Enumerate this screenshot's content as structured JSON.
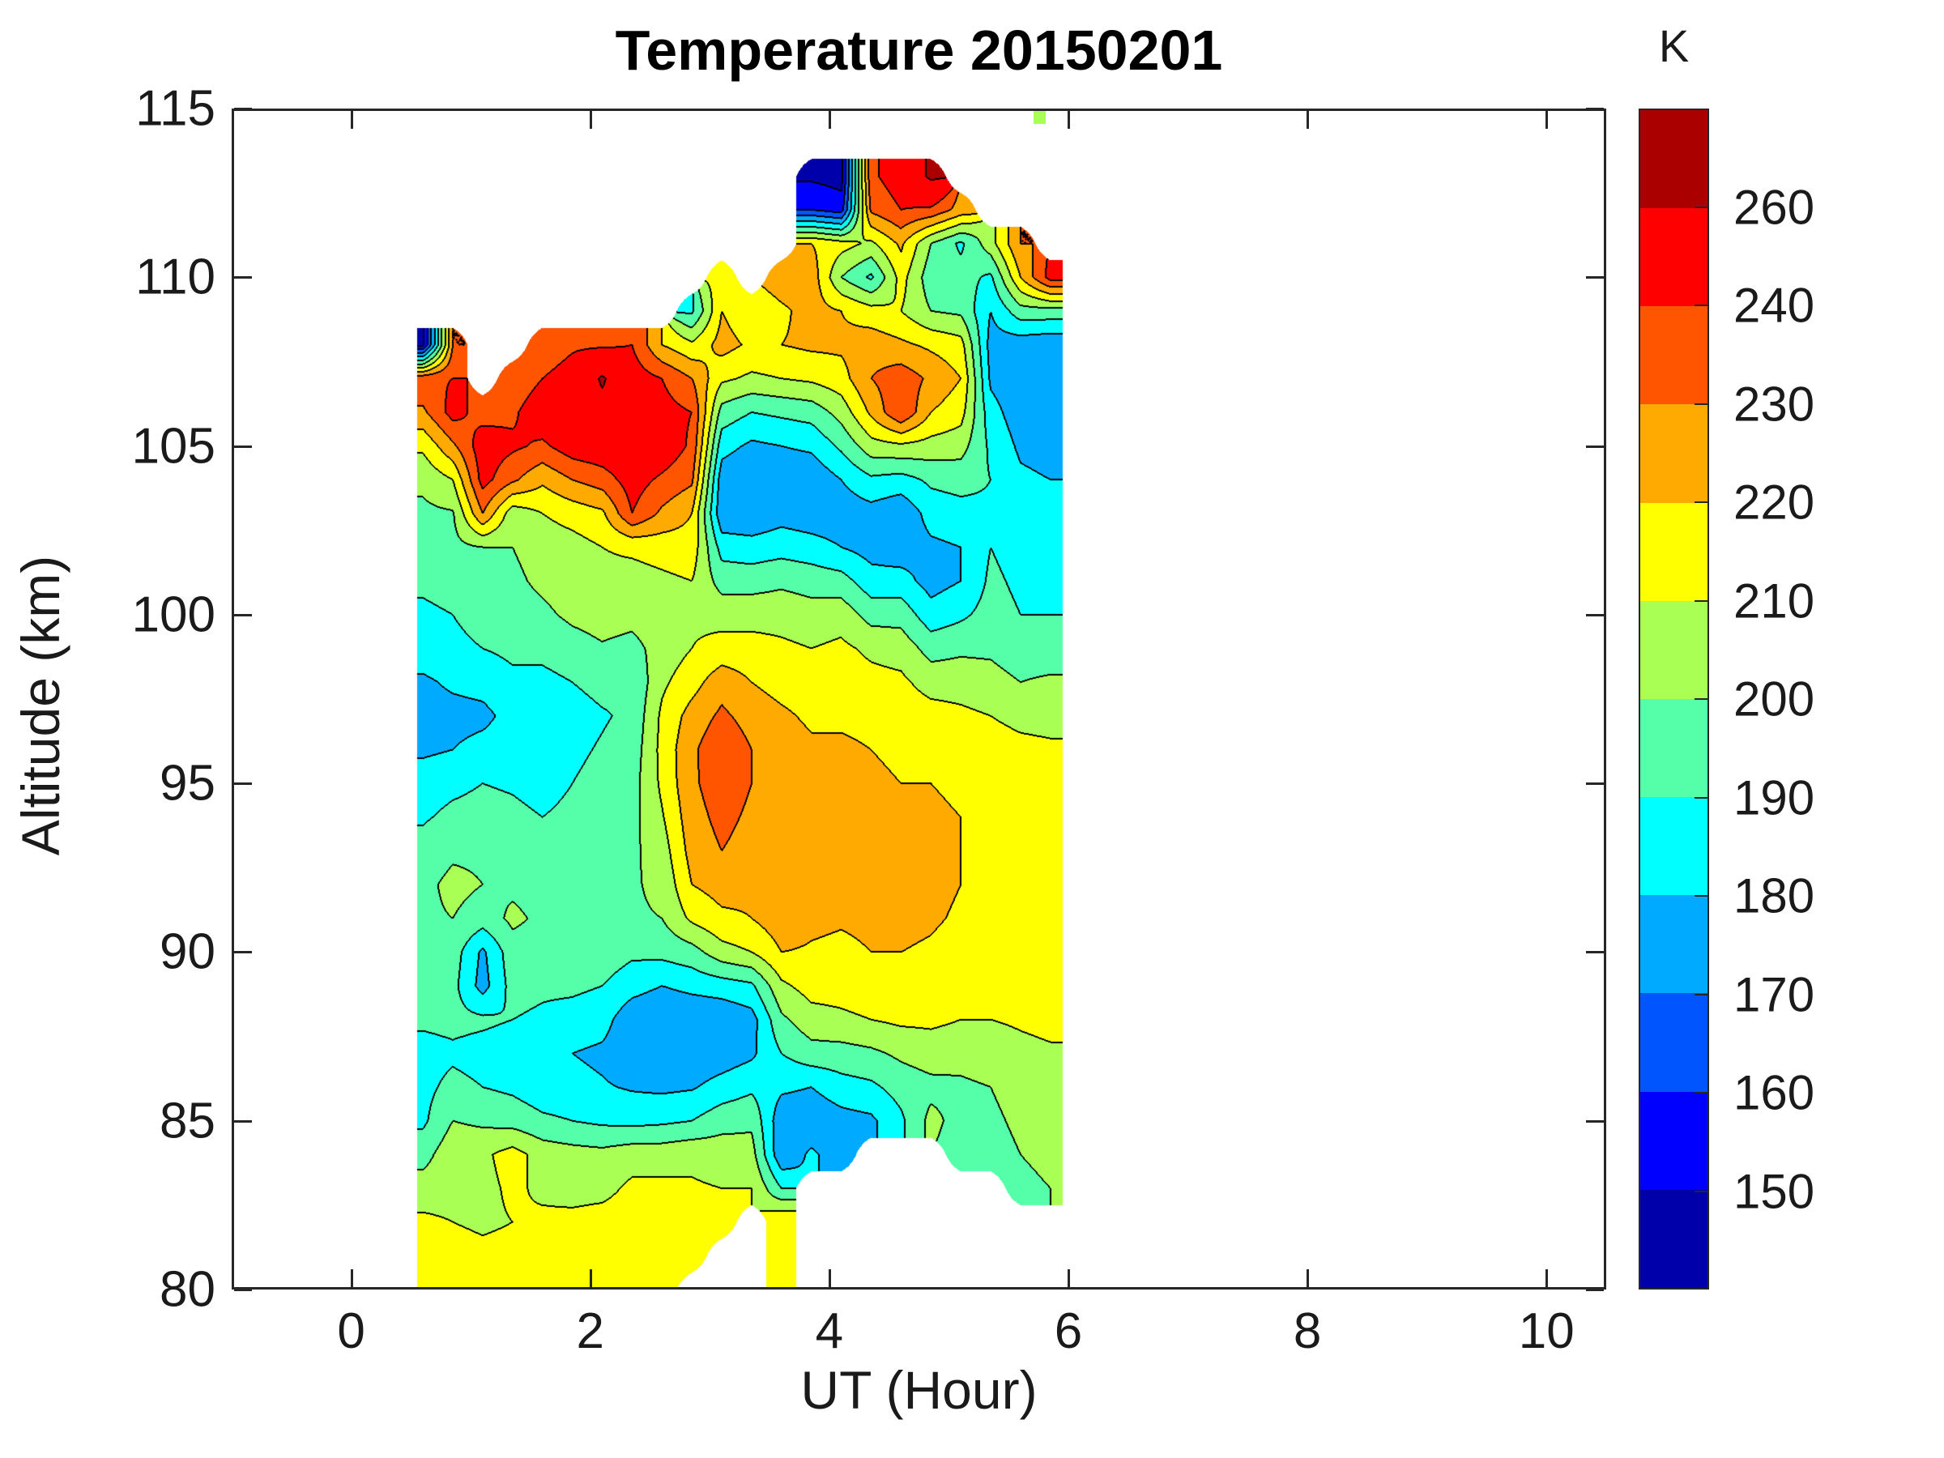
{
  "title": "Temperature 20150201",
  "axes": {
    "x": {
      "label": "UT (Hour)",
      "range": [
        -1,
        10.5
      ],
      "ticks": [
        0,
        2,
        4,
        6,
        8,
        10
      ]
    },
    "y": {
      "label": "Altitude (km)",
      "range": [
        80,
        115
      ],
      "ticks": [
        80,
        85,
        90,
        95,
        100,
        105,
        110,
        115
      ]
    }
  },
  "colorbar": {
    "title": "K",
    "tick_labels": [
      260,
      240,
      230,
      220,
      210,
      200,
      190,
      180,
      170,
      160,
      150
    ],
    "segment_colors_top_to_bottom": [
      "#AA0000",
      "#FF0000",
      "#FF5500",
      "#FFAA00",
      "#FFFF00",
      "#AAFF55",
      "#55FFAA",
      "#00FFFF",
      "#00AAFF",
      "#0055FF",
      "#0000FF",
      "#0000AA"
    ]
  },
  "style": {
    "background": "#FFFFFF",
    "axis_color": "#262626",
    "text_color": "#1a1a1a"
  },
  "chart_data": {
    "type": "filled_contour",
    "title": "Temperature 20150201",
    "xlabel": "UT (Hour)",
    "ylabel": "Altitude (km)",
    "zlabel": "Temperature (K)",
    "xlim": [
      -1,
      10.5
    ],
    "ylim": [
      80,
      115
    ],
    "levels": [
      150,
      160,
      170,
      180,
      190,
      200,
      210,
      220,
      230,
      240,
      260
    ],
    "band_colors": [
      "#0000AA",
      "#0000FF",
      "#0055FF",
      "#00AAFF",
      "#00FFFF",
      "#55FFAA",
      "#AAFF55",
      "#FFFF00",
      "#FFAA00",
      "#FF5500",
      "#FF0000",
      "#AA0000"
    ],
    "no_data_color": "#FFFFFF",
    "contour_line_color": "#000000",
    "grid_x_ut": [
      0.6,
      0.85,
      1.1,
      1.35,
      1.6,
      1.85,
      2.1,
      2.35,
      2.6,
      2.85,
      3.1,
      3.35,
      3.6,
      3.85,
      4.1,
      4.35,
      4.6,
      4.85,
      5.1,
      5.35,
      5.6,
      5.85
    ],
    "grid_y_alt_km": [
      80,
      81,
      82,
      83,
      84,
      85,
      86,
      87,
      88,
      89,
      90,
      91,
      92,
      93,
      94,
      95,
      96,
      97,
      98,
      99,
      100,
      101,
      102,
      103,
      104,
      105,
      106,
      107,
      108,
      109,
      110,
      111,
      112,
      113,
      114
    ],
    "values_by_altitude_row": [
      [
        215,
        215,
        215,
        216,
        216,
        217,
        218,
        218,
        218,
        null,
        null,
        null,
        216,
        null,
        null,
        null,
        null,
        null,
        null,
        null,
        null,
        null
      ],
      [
        215,
        215,
        213,
        214,
        215,
        216,
        216,
        217,
        217,
        217,
        null,
        null,
        218,
        null,
        null,
        null,
        null,
        null,
        null,
        null,
        null,
        null
      ],
      [
        212,
        210,
        208,
        210,
        212,
        213,
        214,
        215,
        216,
        215,
        215,
        null,
        220,
        null,
        null,
        null,
        null,
        null,
        null,
        null,
        null,
        null
      ],
      [
        205,
        206,
        207,
        212,
        208,
        206,
        207,
        212,
        212,
        211,
        210,
        210,
        190,
        null,
        null,
        null,
        null,
        null,
        null,
        null,
        198,
        200
      ],
      [
        196,
        207,
        208,
        214,
        206,
        204,
        203,
        206,
        206,
        208,
        206,
        204,
        172,
        182,
        174,
        null,
        null,
        null,
        194,
        196,
        200,
        202
      ],
      [
        188,
        200,
        198,
        196,
        192,
        190,
        188,
        187,
        188,
        190,
        196,
        198,
        173,
        172,
        176,
        178,
        188,
        203,
        196,
        198,
        202,
        203
      ],
      [
        187,
        193,
        190,
        188,
        184,
        183,
        181,
        179,
        178,
        179,
        184,
        188,
        182,
        180,
        186,
        188,
        194,
        197,
        198,
        200,
        204,
        205
      ],
      [
        186,
        188,
        186,
        184,
        182,
        180,
        178,
        173,
        171,
        172,
        174,
        178,
        190,
        196,
        196,
        198,
        202,
        205,
        204,
        206,
        208,
        209
      ],
      [
        192,
        193,
        192,
        190,
        188,
        186,
        184,
        173,
        170,
        171,
        172,
        176,
        198,
        206,
        208,
        210,
        212,
        212,
        210,
        210,
        211,
        212
      ],
      [
        196,
        193,
        176,
        194,
        192,
        192,
        190,
        184,
        180,
        183,
        185,
        188,
        208,
        214,
        214,
        216,
        217,
        216,
        214,
        213,
        214,
        214
      ],
      [
        198,
        195,
        178,
        196,
        196,
        197,
        196,
        192,
        193,
        196,
        206,
        210,
        220,
        219,
        218,
        220,
        220,
        219,
        217,
        216,
        216,
        216
      ],
      [
        198,
        200,
        195,
        202,
        198,
        199,
        200,
        199,
        200,
        212,
        218,
        220,
        226,
        222,
        221,
        222,
        222,
        221,
        219,
        218,
        218,
        218
      ],
      [
        197,
        203,
        200,
        198,
        196,
        197,
        198,
        199,
        202,
        220,
        224,
        222,
        226,
        224,
        223,
        223,
        222,
        222,
        220,
        219,
        219,
        218
      ],
      [
        193,
        198,
        198,
        196,
        194,
        195,
        197,
        198,
        205,
        224,
        230,
        226,
        227,
        225,
        224,
        223,
        222,
        222,
        220,
        220,
        220,
        219
      ],
      [
        189,
        192,
        193,
        192,
        190,
        192,
        195,
        197,
        209,
        226,
        233,
        228,
        228,
        226,
        225,
        222,
        221,
        221,
        220,
        219,
        219,
        218
      ],
      [
        186,
        188,
        190,
        189,
        187,
        190,
        193,
        196,
        212,
        228,
        236,
        230,
        228,
        225,
        224,
        221,
        220,
        220,
        219,
        218,
        217,
        216
      ],
      [
        178,
        180,
        184,
        186,
        185,
        188,
        191,
        194,
        213,
        228,
        238,
        230,
        226,
        222,
        222,
        220,
        219,
        218,
        217,
        215,
        213,
        212
      ],
      [
        175,
        176,
        177,
        184,
        183,
        186,
        189,
        192,
        212,
        224,
        232,
        226,
        222,
        218,
        218,
        217,
        216,
        214,
        212,
        210,
        207,
        206
      ],
      [
        178,
        182,
        184,
        188,
        187,
        190,
        193,
        191,
        208,
        216,
        226,
        220,
        216,
        214,
        215,
        213,
        212,
        206,
        206,
        204,
        200,
        202
      ],
      [
        186,
        188,
        190,
        192,
        193,
        196,
        199,
        197,
        204,
        210,
        214,
        214,
        212,
        210,
        212,
        208,
        206,
        196,
        198,
        198,
        194,
        193
      ],
      [
        188,
        190,
        193,
        196,
        198,
        202,
        204,
        203,
        206,
        208,
        206,
        206,
        206,
        204,
        206,
        196,
        196,
        184,
        188,
        194,
        190,
        190
      ],
      [
        192,
        194,
        196,
        198,
        202,
        205,
        207,
        206,
        208,
        210,
        196,
        196,
        198,
        196,
        194,
        184,
        184,
        176,
        180,
        192,
        188,
        187
      ],
      [
        196,
        197,
        200,
        200,
        204,
        206,
        210,
        212,
        214,
        216,
        186,
        184,
        186,
        184,
        180,
        176,
        174,
        178,
        180,
        190,
        186,
        185
      ],
      [
        198,
        199,
        230,
        204,
        210,
        214,
        218,
        240,
        228,
        220,
        172,
        172,
        176,
        174,
        174,
        176,
        172,
        184,
        186,
        188,
        184,
        183
      ],
      [
        202,
        210,
        244,
        232,
        222,
        230,
        235,
        245,
        238,
        232,
        174,
        170,
        172,
        172,
        180,
        188,
        186,
        192,
        194,
        190,
        182,
        180
      ],
      [
        212,
        228,
        246,
        242,
        238,
        246,
        248,
        250,
        248,
        238,
        184,
        178,
        180,
        182,
        192,
        206,
        208,
        206,
        204,
        188,
        178,
        176
      ],
      [
        228,
        244,
        236,
        238,
        248,
        252,
        255,
        252,
        244,
        240,
        196,
        190,
        192,
        194,
        204,
        222,
        240,
        220,
        214,
        184,
        174,
        172
      ],
      [
        238,
        240,
        null,
        232,
        240,
        246,
        262,
        246,
        240,
        230,
        212,
        208,
        210,
        212,
        216,
        230,
        236,
        228,
        220,
        178,
        172,
        170
      ],
      [
        148,
        230,
        null,
        null,
        232,
        238,
        238,
        240,
        220,
        212,
        224,
        218,
        220,
        222,
        222,
        226,
        222,
        218,
        214,
        176,
        174,
        172
      ],
      [
        null,
        null,
        null,
        null,
        null,
        null,
        null,
        null,
        null,
        188,
        220,
        212,
        218,
        224,
        220,
        214,
        210,
        200,
        198,
        180,
        196,
        196
      ],
      [
        null,
        null,
        null,
        null,
        null,
        null,
        null,
        null,
        null,
        null,
        212,
        null,
        226,
        226,
        200,
        188,
        214,
        194,
        194,
        188,
        220,
        244
      ],
      [
        null,
        null,
        null,
        null,
        null,
        null,
        null,
        null,
        null,
        null,
        null,
        null,
        null,
        220,
        214,
        208,
        222,
        200,
        188,
        206,
        230,
        null
      ],
      [
        null,
        null,
        null,
        null,
        null,
        null,
        null,
        null,
        null,
        null,
        null,
        null,
        null,
        160,
        155,
        232,
        240,
        238,
        226,
        null,
        null,
        null
      ],
      [
        null,
        null,
        null,
        null,
        null,
        null,
        null,
        null,
        null,
        null,
        null,
        null,
        null,
        148,
        146,
        238,
        246,
        263,
        null,
        null,
        null,
        null
      ],
      [
        null,
        null,
        null,
        null,
        null,
        null,
        null,
        null,
        null,
        null,
        null,
        null,
        null,
        null,
        null,
        null,
        null,
        null,
        null,
        null,
        null,
        null
      ]
    ],
    "isolated_patch": {
      "ut_start": 5.71,
      "ut_end": 5.81,
      "alt_start": 114.55,
      "alt_end": 115,
      "color": "#AAFF55"
    }
  }
}
